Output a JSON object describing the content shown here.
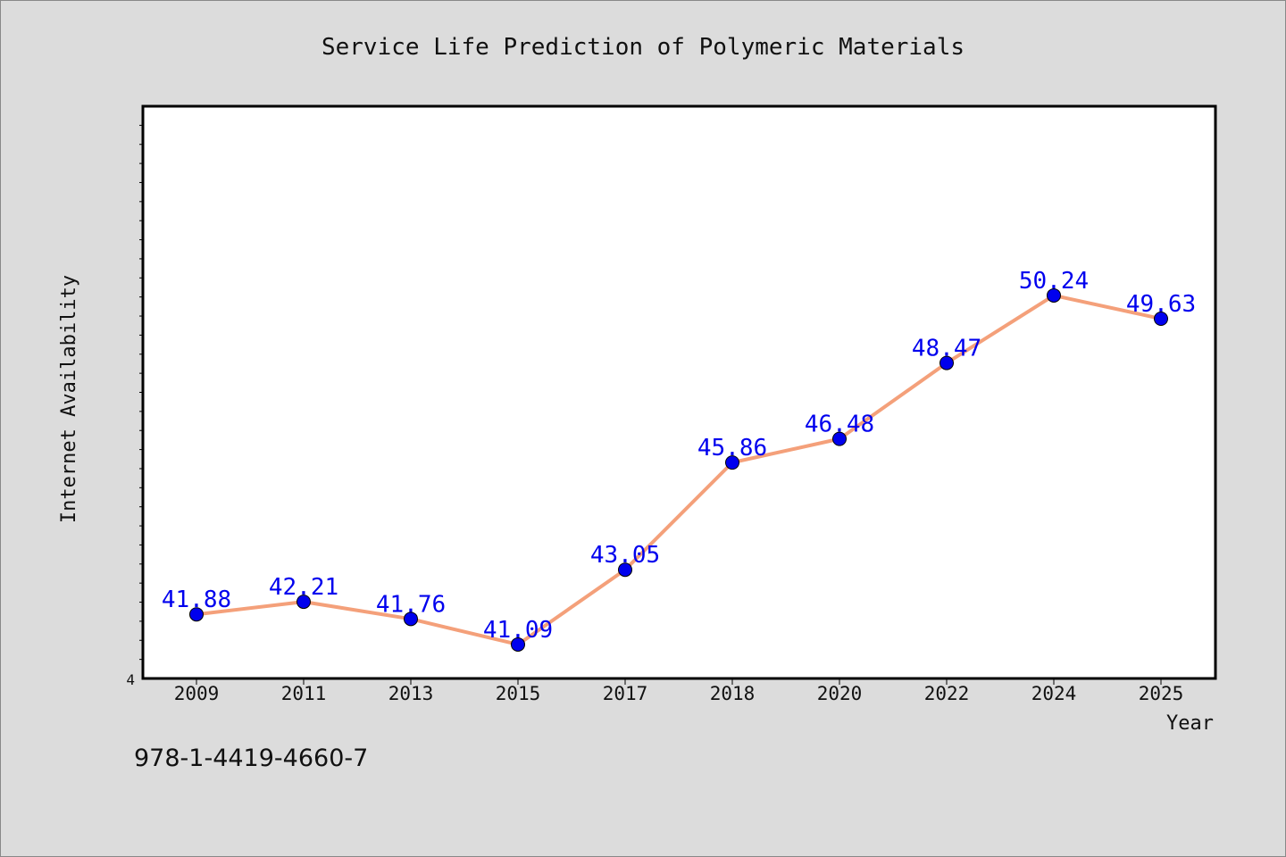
{
  "chart_data": {
    "type": "line",
    "title": "Service Life Prediction of Polymeric Materials",
    "xlabel": "Year",
    "ylabel": "Internet Availability",
    "categories": [
      "2009",
      "2011",
      "2013",
      "2015",
      "2017",
      "2018",
      "2020",
      "2022",
      "2024",
      "2025"
    ],
    "values": [
      41.88,
      42.21,
      41.76,
      41.09,
      43.05,
      45.86,
      46.48,
      48.47,
      50.24,
      49.63
    ],
    "data_labels": [
      "41.88",
      "42.21",
      "41.76",
      "41.09",
      "43.05",
      "45.86",
      "46.48",
      "48.47",
      "50.24",
      "49.63"
    ],
    "y_tick_label": "4",
    "ylim": [
      40.2,
      55.2
    ],
    "grid": false,
    "line_color": "#f4a07a",
    "marker_color": "#0000ee",
    "label_color": "#0000ee"
  },
  "footer_code": "978-1-4419-4660-7"
}
